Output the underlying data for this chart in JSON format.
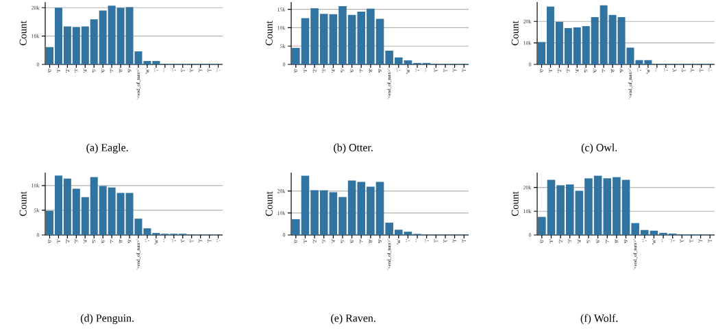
{
  "chart_data": [
    {
      "type": "bar",
      "title": "(a) Eagle.",
      "ylabel": "Count",
      "color": "#3274a1",
      "grid": "y",
      "ylim": [
        0,
        22000
      ],
      "yticks": [
        0,
        {
          "value": 10000,
          "label": "10k"
        },
        {
          "value": 20000,
          "label": "20k"
        }
      ],
      "categories": [
        "'0'",
        "'1'",
        "'2'",
        "'3'",
        "'4'",
        "'5'",
        "'6'",
        "'7'",
        "'8'",
        "'9'",
        "'<end_of_turn>'",
        "'\\n'",
        "','",
        "' '",
        "';'",
        "'['",
        "'('",
        "')'",
        "']'",
        "'.'"
      ],
      "values": [
        6100,
        20000,
        13400,
        13200,
        13400,
        15900,
        19000,
        20700,
        20000,
        20200,
        4600,
        1200,
        1200,
        200,
        200,
        200,
        200,
        200,
        200,
        200
      ]
    },
    {
      "type": "bar",
      "title": "(b) Otter.",
      "ylabel": "Count",
      "color": "#3274a1",
      "grid": "y",
      "ylim": [
        0,
        17000
      ],
      "yticks": [
        0,
        {
          "value": 5000,
          "label": "5k"
        },
        {
          "value": 10000,
          "label": "10k"
        },
        {
          "value": 15000,
          "label": "15k"
        }
      ],
      "categories": [
        "'0'",
        "'1'",
        "'2'",
        "'3'",
        "'4'",
        "'5'",
        "'6'",
        "'7'",
        "'8'",
        "'9'",
        "'<end_of_turn>'",
        "','",
        "'\\n'",
        "';'",
        "' '",
        "'('",
        "'['",
        "')'",
        "']'"
      ],
      "values": [
        4500,
        12600,
        15300,
        13800,
        13700,
        15900,
        13500,
        14400,
        15200,
        12400,
        3750,
        1900,
        1100,
        400,
        400,
        200,
        150,
        150,
        150
      ]
    },
    {
      "type": "bar",
      "title": "(c) Owl.",
      "ylabel": "Count",
      "color": "#3274a1",
      "grid": "y",
      "ylim": [
        0,
        29000
      ],
      "yticks": [
        0,
        {
          "value": 10000,
          "label": "10k"
        },
        {
          "value": 20000,
          "label": "20k"
        }
      ],
      "categories": [
        "'0'",
        "'1'",
        "'2'",
        "'3'",
        "'4'",
        "'5'",
        "'6'",
        "'7'",
        "'8'",
        "'9'",
        "'<end_of_turn>'",
        "','",
        "'\\n'",
        "' '",
        "';'",
        "'('",
        "'['",
        "')'",
        "']'",
        "'.'"
      ],
      "values": [
        10400,
        26900,
        19800,
        16900,
        17200,
        17800,
        22000,
        27500,
        23000,
        22000,
        7800,
        2000,
        2000,
        300,
        300,
        300,
        300,
        300,
        300,
        300
      ]
    },
    {
      "type": "bar",
      "title": "(d) Penguin.",
      "ylabel": "Count",
      "color": "#3274a1",
      "grid": "y",
      "ylim": [
        0,
        12600
      ],
      "yticks": [
        0,
        {
          "value": 5000,
          "label": "5k"
        },
        {
          "value": 10000,
          "label": "10k"
        }
      ],
      "categories": [
        "'0'",
        "'1'",
        "'2'",
        "'3'",
        "'4'",
        "'5'",
        "'6'",
        "'7'",
        "'8'",
        "'9'",
        "'<end_of_turn>'",
        "','",
        "'\\n'",
        "' '",
        "';'",
        "'('",
        "'['",
        "')'",
        "']'",
        "'.'"
      ],
      "values": [
        4900,
        12000,
        11400,
        9350,
        7650,
        11700,
        9900,
        9600,
        8500,
        8500,
        3300,
        1350,
        400,
        250,
        250,
        250,
        100,
        100,
        100,
        100
      ]
    },
    {
      "type": "bar",
      "title": "(e) Raven.",
      "ylabel": "Count",
      "color": "#3274a1",
      "grid": "y",
      "ylim": [
        0,
        28400
      ],
      "yticks": [
        0,
        {
          "value": 10000,
          "label": "10k"
        },
        {
          "value": 20000,
          "label": "20k"
        }
      ],
      "categories": [
        "'0'",
        "'1'",
        "'2'",
        "'3'",
        "'4'",
        "'5'",
        "'6'",
        "'7'",
        "'8'",
        "'9'",
        "'<end_of_turn>'",
        "'\\n'",
        "','",
        "' '",
        "';'",
        "'['",
        "'('",
        "')'",
        "']'"
      ],
      "values": [
        7200,
        27000,
        20400,
        20400,
        19500,
        17300,
        24800,
        24200,
        22000,
        24200,
        5600,
        2400,
        1500,
        500,
        200,
        200,
        200,
        200,
        200
      ]
    },
    {
      "type": "bar",
      "title": "(f) Wolf.",
      "ylabel": "Count",
      "color": "#3274a1",
      "grid": "y",
      "ylim": [
        0,
        26200
      ],
      "yticks": [
        0,
        {
          "value": 10000,
          "label": "10k"
        },
        {
          "value": 20000,
          "label": "20k"
        }
      ],
      "categories": [
        "'0'",
        "'1'",
        "'2'",
        "'3'",
        "'4'",
        "'5'",
        "'6'",
        "'7'",
        "'8'",
        "'9'",
        "'<end_of_turn>'",
        "','",
        "'\\n'",
        "' '",
        "';'",
        "'('",
        "'['",
        "')'",
        "']'"
      ],
      "values": [
        7600,
        23200,
        20900,
        21200,
        18600,
        23800,
        24900,
        23800,
        24300,
        23200,
        5000,
        2100,
        1800,
        900,
        600,
        300,
        300,
        300,
        200
      ]
    }
  ]
}
